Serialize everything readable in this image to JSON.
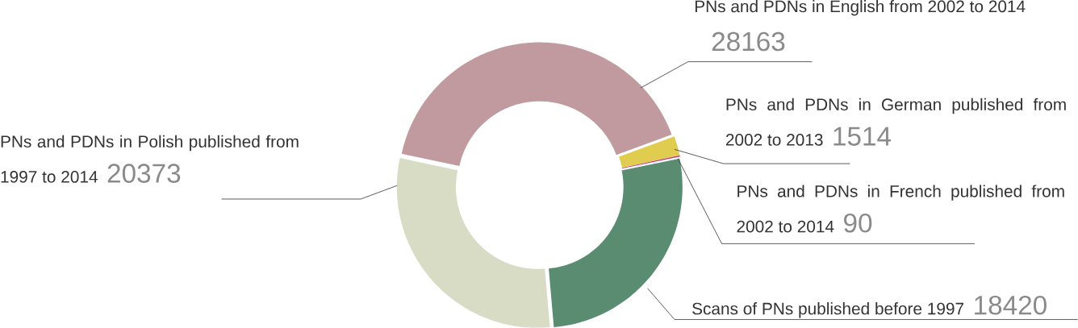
{
  "chart_data": {
    "type": "donut",
    "categories": [
      "PNs and PDNs in English from 2002 to 2014",
      "PNs and PDNs in German published from 2002 to 2013",
      "PNs and PDNs in French published from 2002 to 2014",
      "Scans of PNs published before 1997",
      "PNs and PDNs in Polish published from 1997 to 2014"
    ],
    "values": [
      28163,
      1514,
      90,
      18420,
      20373
    ],
    "colors": [
      "#c09a9e",
      "#e0cd50",
      "#c0307a",
      "#5a8c72",
      "#d8dcc4"
    ],
    "data_labels": true
  }
}
